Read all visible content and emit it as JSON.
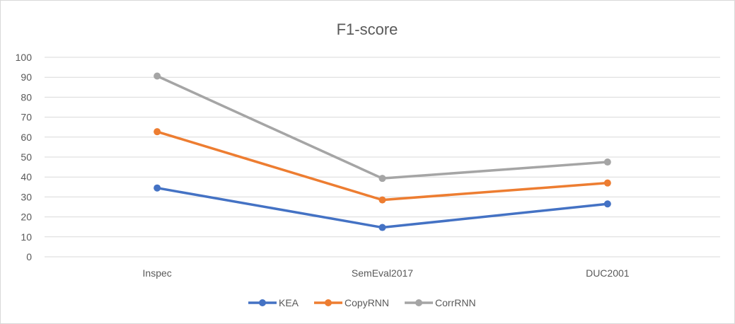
{
  "chart_data": {
    "type": "line",
    "title": "F1-score",
    "xlabel": "",
    "ylabel": "",
    "categories": [
      "Inspec",
      "SemEval2017",
      "DUC2001"
    ],
    "ylim": [
      0,
      100
    ],
    "yticks": [
      0,
      10,
      20,
      30,
      40,
      50,
      60,
      70,
      80,
      90,
      100
    ],
    "grid": true,
    "legend_position": "bottom",
    "series": [
      {
        "name": "KEA",
        "color": "#4472C4",
        "values": [
          34.5,
          14.7,
          26.5
        ]
      },
      {
        "name": "CopyRNN",
        "color": "#ED7D31",
        "values": [
          62.7,
          28.5,
          37.0
        ]
      },
      {
        "name": "CorrRNN",
        "color": "#A5A5A5",
        "values": [
          90.6,
          39.3,
          47.5
        ]
      }
    ]
  }
}
